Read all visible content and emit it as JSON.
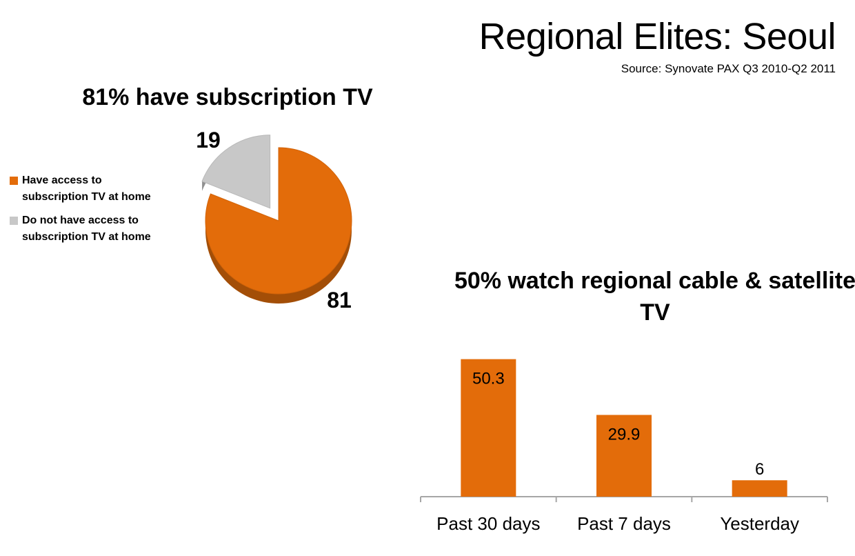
{
  "header": {
    "title": "Regional Elites: Seoul",
    "source": "Source: Synovate PAX Q3 2010-Q2 2011"
  },
  "chart_data": [
    {
      "type": "pie",
      "title": "81% have subscription TV",
      "categories": [
        "Have access to subscription TV at home",
        "Do not have access to subscription TV at home"
      ],
      "values": [
        81,
        19
      ],
      "colors": [
        "#e36c0a",
        "#c8c8c8"
      ],
      "data_labels": [
        "81",
        "19"
      ],
      "legend_position": "left",
      "exploded_slice": "Do not have access to subscription TV at home"
    },
    {
      "type": "bar",
      "title": "50% watch regional cable & satellite TV",
      "categories": [
        "Past 30 days",
        "Past 7 days",
        "Yesterday"
      ],
      "values": [
        50.3,
        29.9,
        6
      ],
      "data_labels": [
        "50.3",
        "29.9",
        "6"
      ],
      "color": "#e36c0a",
      "ylim": [
        0,
        55
      ],
      "grid": false
    }
  ]
}
